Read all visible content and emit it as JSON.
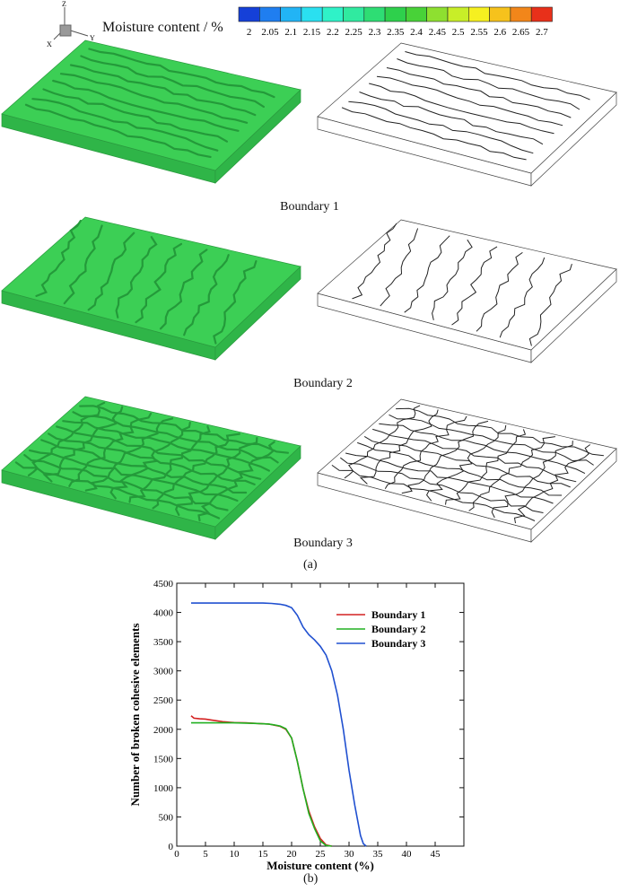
{
  "figure": {
    "axes_triad": {
      "z": "Z",
      "x": "X",
      "y": "Y"
    },
    "colorbar": {
      "title": "Moisture content / %",
      "ticks": [
        "2",
        "2.05",
        "2.1",
        "2.15",
        "2.2",
        "2.25",
        "2.3",
        "2.35",
        "2.4",
        "2.45",
        "2.5",
        "2.55",
        "2.6",
        "2.65",
        "2.7"
      ],
      "colors": [
        "#1540d8",
        "#1f7ef0",
        "#22b4f5",
        "#2ae0f0",
        "#2ff2c8",
        "#30eaa0",
        "#2edd74",
        "#2ed04c",
        "#48d238",
        "#8ee030",
        "#c8ee28",
        "#f6f020",
        "#f6c21c",
        "#f2861a",
        "#e8301a"
      ]
    },
    "panel_a": {
      "label": "(a)",
      "rows": [
        {
          "caption": "Boundary 1",
          "pattern": "parallel-cracks"
        },
        {
          "caption": "Boundary 2",
          "pattern": "diagonal-cracks"
        },
        {
          "caption": "Boundary 3",
          "pattern": "polygonal-network"
        }
      ],
      "slab_color": "#3ccf55",
      "slab_side_color": "#2fb548"
    },
    "panel_b_label": "(b)"
  },
  "chart_data": {
    "type": "line",
    "xlabel": "Moisture content (%)",
    "ylabel": "Number of broken cohesive elements",
    "xlim": [
      0,
      50
    ],
    "ylim": [
      0,
      4500
    ],
    "xticks": [
      "0",
      "5",
      "10",
      "15",
      "20",
      "25",
      "30",
      "35",
      "40",
      "45"
    ],
    "yticks": [
      "0",
      "500",
      "1000",
      "1500",
      "2000",
      "2500",
      "3000",
      "3500",
      "4000",
      "4500"
    ],
    "legend_position": "top-right",
    "series": [
      {
        "name": "Boundary 1",
        "color": "#d42020",
        "x": [
          2.5,
          3,
          4,
          5,
          6,
          8,
          10,
          12,
          14,
          16,
          17,
          18,
          19,
          20,
          21,
          22,
          23,
          24,
          25,
          26,
          27
        ],
        "y": [
          2230,
          2190,
          2180,
          2175,
          2160,
          2130,
          2115,
          2110,
          2100,
          2090,
          2070,
          2050,
          2000,
          1850,
          1450,
          980,
          600,
          330,
          130,
          20,
          0
        ]
      },
      {
        "name": "Boundary 2",
        "color": "#20b020",
        "x": [
          2.5,
          4,
          6,
          8,
          10,
          12,
          14,
          16,
          17,
          18,
          19,
          20,
          21,
          22,
          23,
          24,
          25,
          26,
          27
        ],
        "y": [
          2110,
          2110,
          2110,
          2110,
          2110,
          2105,
          2100,
          2090,
          2075,
          2055,
          2010,
          1850,
          1450,
          980,
          560,
          300,
          90,
          10,
          0
        ]
      },
      {
        "name": "Boundary 3",
        "color": "#2050d0",
        "x": [
          2.5,
          5,
          10,
          15,
          16.5,
          18,
          19,
          20,
          21,
          22,
          23,
          24,
          25,
          26,
          27,
          28,
          29,
          30,
          31,
          32,
          32.5,
          33
        ],
        "y": [
          4160,
          4160,
          4160,
          4160,
          4155,
          4140,
          4120,
          4080,
          3950,
          3750,
          3620,
          3530,
          3420,
          3270,
          3000,
          2580,
          2000,
          1300,
          700,
          180,
          40,
          0
        ]
      }
    ]
  }
}
